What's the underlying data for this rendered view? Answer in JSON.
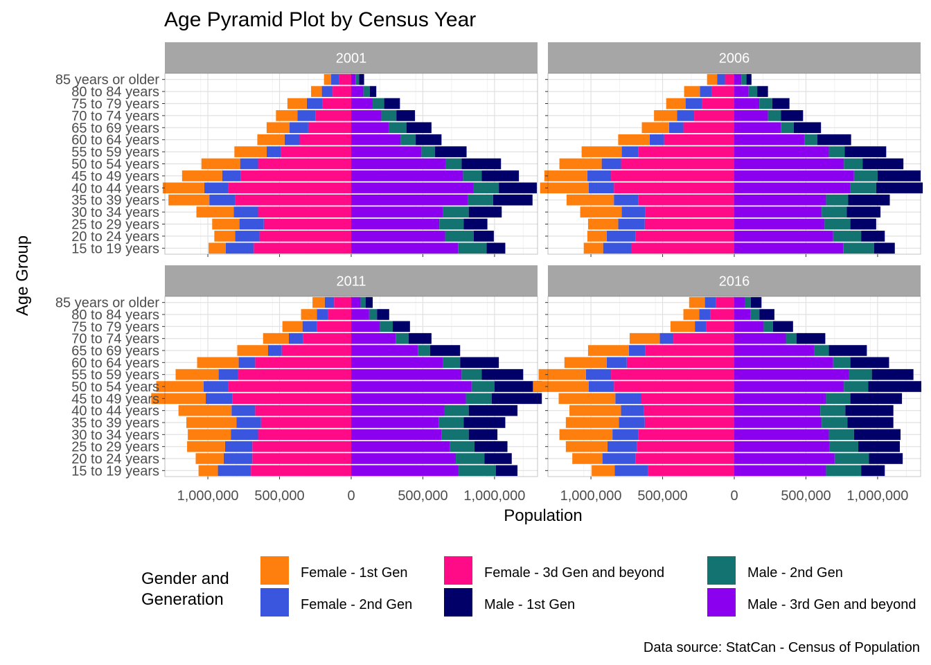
{
  "chart_data": {
    "type": "bar",
    "orientation": "horizontal",
    "stacked": true,
    "diverging": true,
    "title": "Age Pyramid Plot by Census Year",
    "xlabel": "Population",
    "ylabel": "Age Group",
    "caption": "Data source: StatCan - Census of Population",
    "legend_title": "Gender and\nGeneration",
    "legend_position": "bottom",
    "grid": true,
    "xlim": [
      -1300000,
      1300000
    ],
    "x_ticks": [
      -1000000,
      -500000,
      0,
      500000,
      1000000
    ],
    "x_tick_labels": [
      "1,000,000",
      "500,000",
      "0",
      "500,000",
      "1,000,000"
    ],
    "categories": [
      "85 years or older",
      "80 to 84 years",
      "75 to 79 years",
      "70 to 74 years",
      "65 to 69 years",
      "60 to 64 years",
      "55 to 59 years",
      "50 to 54 years",
      "45 to 49 years",
      "40 to 44 years",
      "35 to 39 years",
      "30 to 34 years",
      "25 to 29 years",
      "20 to 24 years",
      "15 to 19 years"
    ],
    "series_legend": [
      {
        "name": "Female - 1st Gen",
        "color": "#FF7F0E"
      },
      {
        "name": "Female - 2nd Gen",
        "color": "#3A55DE"
      },
      {
        "name": "Female - 3d Gen and beyond",
        "color": "#FF0A87"
      },
      {
        "name": "Male - 1st Gen",
        "color": "#000068"
      },
      {
        "name": "Male - 2nd Gen",
        "color": "#127371"
      },
      {
        "name": "Male - 3rd Gen and beyond",
        "color": "#8B00EE"
      }
    ],
    "female_stack_order": [
      "Female - 3d Gen and beyond",
      "Female - 2nd Gen",
      "Female - 1st Gen"
    ],
    "male_stack_order": [
      "Male - 3rd Gen and beyond",
      "Male - 2nd Gen",
      "Male - 1st Gen"
    ],
    "panels": [
      {
        "year": "2001",
        "female": {
          "Female - 3d Gen and beyond": [
            85000,
            130000,
            200000,
            250000,
            300000,
            360000,
            490000,
            650000,
            770000,
            860000,
            810000,
            650000,
            610000,
            640000,
            680000
          ],
          "Female - 2nd Gen": [
            55000,
            75000,
            110000,
            125000,
            130000,
            105000,
            100000,
            125000,
            130000,
            165000,
            180000,
            170000,
            170000,
            170000,
            195000
          ],
          "Female - 1st Gen": [
            50000,
            75000,
            135000,
            150000,
            160000,
            190000,
            225000,
            270000,
            280000,
            290000,
            285000,
            260000,
            190000,
            145000,
            120000
          ]
        },
        "male": {
          "Male - 3rd Gen and beyond": [
            30000,
            85000,
            150000,
            210000,
            265000,
            345000,
            490000,
            660000,
            780000,
            855000,
            815000,
            640000,
            615000,
            655000,
            745000
          ],
          "Male - 2nd Gen": [
            25000,
            45000,
            80000,
            105000,
            120000,
            105000,
            95000,
            110000,
            130000,
            175000,
            175000,
            180000,
            170000,
            200000,
            200000
          ],
          "Male - 1st Gen": [
            35000,
            45000,
            110000,
            130000,
            175000,
            180000,
            220000,
            275000,
            260000,
            265000,
            275000,
            230000,
            165000,
            140000,
            130000
          ]
        }
      },
      {
        "year": "2006",
        "female": {
          "Female - 3d Gen and beyond": [
            65000,
            155000,
            225000,
            280000,
            355000,
            490000,
            670000,
            790000,
            860000,
            840000,
            670000,
            620000,
            625000,
            690000,
            720000
          ],
          "Female - 2nd Gen": [
            55000,
            85000,
            115000,
            120000,
            100000,
            100000,
            115000,
            135000,
            165000,
            175000,
            170000,
            165000,
            185000,
            200000,
            195000
          ],
          "Female - 1st Gen": [
            70000,
            110000,
            135000,
            160000,
            190000,
            220000,
            280000,
            295000,
            300000,
            340000,
            330000,
            290000,
            210000,
            135000,
            135000
          ]
        },
        "male": {
          "Male - 3rd Gen and beyond": [
            50000,
            100000,
            175000,
            235000,
            325000,
            490000,
            660000,
            765000,
            835000,
            810000,
            640000,
            610000,
            630000,
            690000,
            760000
          ],
          "Male - 2nd Gen": [
            35000,
            60000,
            90000,
            90000,
            90000,
            90000,
            110000,
            130000,
            165000,
            180000,
            155000,
            175000,
            180000,
            195000,
            215000
          ],
          "Male - 1st Gen": [
            35000,
            75000,
            120000,
            155000,
            190000,
            235000,
            290000,
            285000,
            300000,
            325000,
            290000,
            235000,
            180000,
            165000,
            145000
          ]
        }
      },
      {
        "year": "2011",
        "female": {
          "Female - 3d Gen and beyond": [
            120000,
            160000,
            240000,
            335000,
            485000,
            670000,
            790000,
            860000,
            830000,
            670000,
            630000,
            650000,
            690000,
            690000,
            700000
          ],
          "Female - 2nd Gen": [
            65000,
            80000,
            100000,
            100000,
            95000,
            115000,
            135000,
            170000,
            185000,
            165000,
            170000,
            190000,
            190000,
            200000,
            230000
          ],
          "Female - 1st Gen": [
            85000,
            110000,
            140000,
            180000,
            215000,
            290000,
            300000,
            330000,
            380000,
            370000,
            350000,
            300000,
            265000,
            195000,
            135000
          ]
        },
        "male": {
          "Male - 3rd Gen and beyond": [
            65000,
            125000,
            200000,
            310000,
            465000,
            640000,
            770000,
            840000,
            800000,
            650000,
            610000,
            630000,
            690000,
            730000,
            750000
          ],
          "Male - 2nd Gen": [
            35000,
            55000,
            90000,
            90000,
            85000,
            120000,
            140000,
            160000,
            180000,
            170000,
            175000,
            190000,
            170000,
            200000,
            260000
          ],
          "Male - 1st Gen": [
            50000,
            85000,
            120000,
            160000,
            210000,
            270000,
            290000,
            330000,
            350000,
            340000,
            290000,
            200000,
            230000,
            190000,
            150000
          ]
        }
      },
      {
        "year": "2016",
        "female": {
          "Female - 3d Gen and beyond": [
            130000,
            165000,
            195000,
            425000,
            620000,
            750000,
            860000,
            840000,
            650000,
            630000,
            625000,
            670000,
            680000,
            690000,
            600000
          ],
          "Female - 2nd Gen": [
            75000,
            80000,
            80000,
            95000,
            115000,
            140000,
            175000,
            175000,
            180000,
            160000,
            180000,
            180000,
            205000,
            230000,
            235000
          ],
          "Female - 1st Gen": [
            110000,
            110000,
            170000,
            210000,
            285000,
            295000,
            330000,
            390000,
            395000,
            360000,
            370000,
            370000,
            290000,
            210000,
            160000
          ]
        },
        "male": {
          "Male - 3rd Gen and beyond": [
            75000,
            115000,
            205000,
            360000,
            560000,
            690000,
            800000,
            765000,
            640000,
            600000,
            610000,
            660000,
            665000,
            700000,
            640000
          ],
          "Male - 2nd Gen": [
            40000,
            60000,
            65000,
            75000,
            100000,
            120000,
            160000,
            170000,
            170000,
            175000,
            180000,
            175000,
            200000,
            240000,
            245000
          ],
          "Male - 1st Gen": [
            75000,
            105000,
            140000,
            200000,
            265000,
            270000,
            290000,
            370000,
            360000,
            335000,
            320000,
            325000,
            290000,
            235000,
            165000
          ]
        }
      }
    ]
  }
}
